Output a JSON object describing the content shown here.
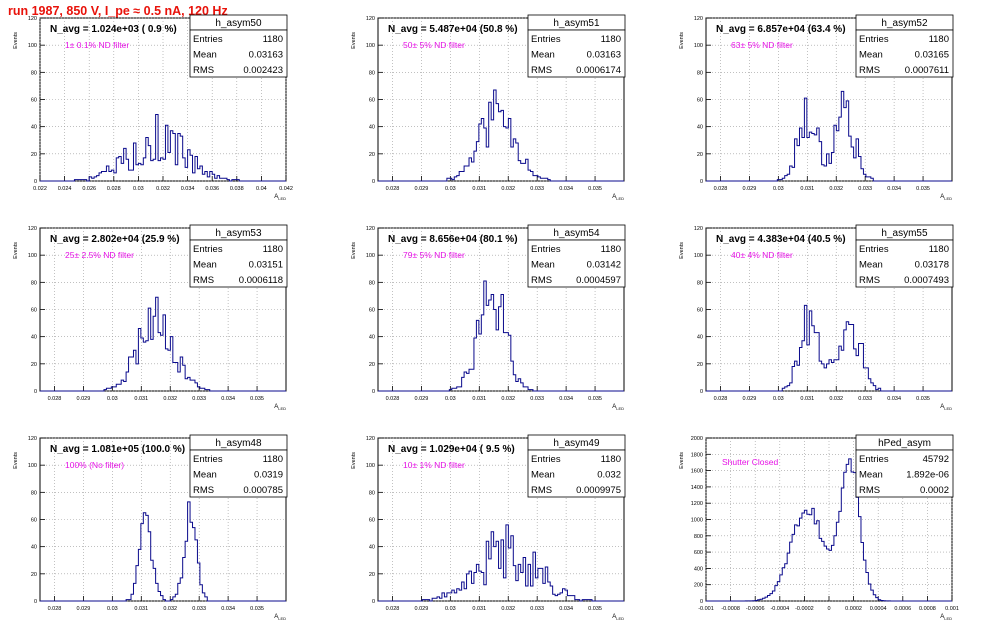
{
  "run_title": "run 1987,   850 V, I_pe ≈ 0.5 nA, 120 Hz",
  "colors": {
    "title": "#e8120a",
    "histogram": "#0a0a8c",
    "annotation": "#e612e6",
    "grid": "#9a9a9a"
  },
  "chart_data": [
    {
      "type": "histogram",
      "name": "h_asym50",
      "nlabel": "N_avg = 1.024e+03 ( 0.9 %)",
      "note": "1± 0.1% ND filter",
      "stats": {
        "entries_label": "Entries",
        "entries": "1180",
        "mean_label": "Mean",
        "mean": "0.03163",
        "rms_label": "RMS",
        "rms": "0.002423"
      },
      "xlim": [
        0.022,
        0.042
      ],
      "xticks": [
        "0.022",
        "0.024",
        "0.026",
        "0.028",
        "0.03",
        "0.032",
        "0.034",
        "0.036",
        "0.038",
        "0.04",
        "0.042"
      ],
      "ylim": [
        0,
        120
      ],
      "yticks": [
        "0",
        "20",
        "40",
        "60",
        "80",
        "100",
        "120"
      ],
      "ylabel": "Events",
      "xlabel": "A LED",
      "shape": {
        "type": "gauss",
        "peaks": [
          {
            "mu": 0.0316,
            "sigma": 0.0024,
            "amp": 30
          }
        ],
        "noise": 0.3,
        "seed": 5
      }
    },
    {
      "type": "histogram",
      "name": "h_asym51",
      "nlabel": "N_avg = 5.487e+04 (50.8 %)",
      "note": "50± 5% ND filter",
      "stats": {
        "entries_label": "Entries",
        "entries": "1180",
        "mean_label": "Mean",
        "mean": "0.03163",
        "rms_label": "RMS",
        "rms": "0.0006174"
      },
      "xlim": [
        0.0275,
        0.036
      ],
      "xticks": [
        "0.028",
        "0.029",
        "0.03",
        "0.031",
        "0.032",
        "0.033",
        "0.034",
        "0.035"
      ],
      "ylim": [
        0,
        120
      ],
      "yticks": [
        "0",
        "20",
        "40",
        "60",
        "80",
        "100",
        "120"
      ],
      "ylabel": "Events",
      "xlabel": "A LED",
      "shape": {
        "type": "gauss",
        "peaks": [
          {
            "mu": 0.03163,
            "sigma": 0.00062,
            "amp": 52
          }
        ],
        "noise": 0.2,
        "seed": 11
      }
    },
    {
      "type": "histogram",
      "name": "h_asym52",
      "nlabel": "N_avg = 6.857e+04 (63.4 %)",
      "note": "63± 5% ND filter",
      "stats": {
        "entries_label": "Entries",
        "entries": "1180",
        "mean_label": "Mean",
        "mean": "0.03165",
        "rms_label": "RMS",
        "rms": "0.0007611"
      },
      "xlim": [
        0.0275,
        0.036
      ],
      "xticks": [
        "0.028",
        "0.029",
        "0.03",
        "0.031",
        "0.032",
        "0.033",
        "0.034",
        "0.035"
      ],
      "ylim": [
        0,
        120
      ],
      "yticks": [
        "0",
        "20",
        "40",
        "60",
        "80",
        "100",
        "120"
      ],
      "ylabel": "Events",
      "xlabel": "A LED",
      "shape": {
        "type": "gauss",
        "peaks": [
          {
            "mu": 0.03102,
            "sigma": 0.00034,
            "amp": 50
          },
          {
            "mu": 0.03228,
            "sigma": 0.00034,
            "amp": 52
          }
        ],
        "noise": 0.22,
        "seed": 17
      }
    },
    {
      "type": "histogram",
      "name": "h_asym53",
      "nlabel": "N_avg = 2.802e+04 (25.9 %)",
      "note": "25± 2.5% ND filter",
      "stats": {
        "entries_label": "Entries",
        "entries": "1180",
        "mean_label": "Mean",
        "mean": "0.03151",
        "rms_label": "RMS",
        "rms": "0.0006118"
      },
      "xlim": [
        0.0275,
        0.036
      ],
      "xticks": [
        "0.028",
        "0.029",
        "0.03",
        "0.031",
        "0.032",
        "0.033",
        "0.034",
        "0.035"
      ],
      "ylim": [
        0,
        120
      ],
      "yticks": [
        "0",
        "20",
        "40",
        "60",
        "80",
        "100",
        "120"
      ],
      "ylabel": "Events",
      "xlabel": "A LED",
      "shape": {
        "type": "gauss",
        "peaks": [
          {
            "mu": 0.03151,
            "sigma": 0.00061,
            "amp": 55
          }
        ],
        "noise": 0.18,
        "seed": 23
      }
    },
    {
      "type": "histogram",
      "name": "h_asym54",
      "nlabel": "N_avg = 8.656e+04 (80.1 %)",
      "note": "79± 5% ND filter",
      "stats": {
        "entries_label": "Entries",
        "entries": "1180",
        "mean_label": "Mean",
        "mean": "0.03142",
        "rms_label": "RMS",
        "rms": "0.0004597"
      },
      "xlim": [
        0.0275,
        0.036
      ],
      "xticks": [
        "0.028",
        "0.029",
        "0.03",
        "0.031",
        "0.032",
        "0.033",
        "0.034",
        "0.035"
      ],
      "ylim": [
        0,
        120
      ],
      "yticks": [
        "0",
        "20",
        "40",
        "60",
        "80",
        "100",
        "120"
      ],
      "ylabel": "Events",
      "xlabel": "A LED",
      "shape": {
        "type": "gauss",
        "peaks": [
          {
            "mu": 0.03142,
            "sigma": 0.00046,
            "amp": 72
          }
        ],
        "noise": 0.2,
        "seed": 29
      }
    },
    {
      "type": "histogram",
      "name": "h_asym55",
      "nlabel": "N_avg = 4.383e+04 (40.5 %)",
      "note": "40± 4% ND filter",
      "stats": {
        "entries_label": "Entries",
        "entries": "1180",
        "mean_label": "Mean",
        "mean": "0.03178",
        "rms_label": "RMS",
        "rms": "0.0007493"
      },
      "xlim": [
        0.0275,
        0.036
      ],
      "xticks": [
        "0.028",
        "0.029",
        "0.03",
        "0.031",
        "0.032",
        "0.033",
        "0.034",
        "0.035"
      ],
      "ylim": [
        0,
        120
      ],
      "yticks": [
        "0",
        "20",
        "40",
        "60",
        "80",
        "100",
        "120"
      ],
      "ylabel": "Events",
      "xlabel": "A LED",
      "shape": {
        "type": "gauss",
        "peaks": [
          {
            "mu": 0.03112,
            "sigma": 0.00036,
            "amp": 48
          },
          {
            "mu": 0.03248,
            "sigma": 0.00036,
            "amp": 50
          }
        ],
        "noise": 0.2,
        "seed": 31
      }
    },
    {
      "type": "histogram",
      "name": "h_asym48",
      "nlabel": "N_avg = 1.081e+05 (100.0 %)",
      "note": "100% (No filter)",
      "stats": {
        "entries_label": "Entries",
        "entries": "1180",
        "mean_label": "Mean",
        "mean": "0.0319",
        "rms_label": "RMS",
        "rms": "0.000785"
      },
      "xlim": [
        0.0275,
        0.036
      ],
      "xticks": [
        "0.028",
        "0.029",
        "0.03",
        "0.031",
        "0.032",
        "0.033",
        "0.034",
        "0.035"
      ],
      "ylim": [
        0,
        120
      ],
      "yticks": [
        "0",
        "20",
        "40",
        "60",
        "80",
        "100",
        "120"
      ],
      "ylabel": "Events",
      "xlabel": "A LED",
      "shape": {
        "type": "gauss",
        "peaks": [
          {
            "mu": 0.03115,
            "sigma": 0.00022,
            "amp": 64
          },
          {
            "mu": 0.0327,
            "sigma": 0.00022,
            "amp": 62
          }
        ],
        "noise": 0.12,
        "seed": 37
      }
    },
    {
      "type": "histogram",
      "name": "h_asym49",
      "nlabel": "N_avg = 1.029e+04 ( 9.5 %)",
      "note": "10± 1% ND filter",
      "stats": {
        "entries_label": "Entries",
        "entries": "1180",
        "mean_label": "Mean",
        "mean": "0.032",
        "rms_label": "RMS",
        "rms": "0.0009975"
      },
      "xlim": [
        0.0275,
        0.036
      ],
      "xticks": [
        "0.028",
        "0.029",
        "0.03",
        "0.031",
        "0.032",
        "0.033",
        "0.034",
        "0.035"
      ],
      "ylim": [
        0,
        120
      ],
      "yticks": [
        "0",
        "20",
        "40",
        "60",
        "80",
        "100",
        "120"
      ],
      "ylabel": "Events",
      "xlabel": "A LED",
      "shape": {
        "type": "gauss",
        "peaks": [
          {
            "mu": 0.032,
            "sigma": 0.001,
            "amp": 37
          }
        ],
        "noise": 0.28,
        "seed": 41
      }
    },
    {
      "type": "histogram",
      "name": "hPed_asym",
      "nlabel": "",
      "note": "Shutter Closed",
      "stats": {
        "entries_label": "Entries",
        "entries": "45792",
        "mean_label": "Mean",
        "mean": "1.892e-06",
        "rms_label": "RMS",
        "rms": "0.0002"
      },
      "xlim": [
        -0.001,
        0.001
      ],
      "xticks": [
        "-0.001",
        "-0.0008",
        "-0.0006",
        "-0.0004",
        "-0.0002",
        "0",
        "0.0002",
        "0.0004",
        "0.0006",
        "0.0008",
        "0.001"
      ],
      "ylim": [
        0,
        2000
      ],
      "yticks": [
        "0",
        "200",
        "400",
        "600",
        "800",
        "1000",
        "1200",
        "1400",
        "1600",
        "1800",
        "2000"
      ],
      "ylabel": "Events",
      "xlabel": "A LED",
      "shape": {
        "type": "gauss",
        "peaks": [
          {
            "mu": -0.00018,
            "sigma": 0.00013,
            "amp": 1150
          },
          {
            "mu": 0.00017,
            "sigma": 8e-05,
            "amp": 1650
          }
        ],
        "noise": 0.03,
        "seed": 43
      }
    }
  ]
}
